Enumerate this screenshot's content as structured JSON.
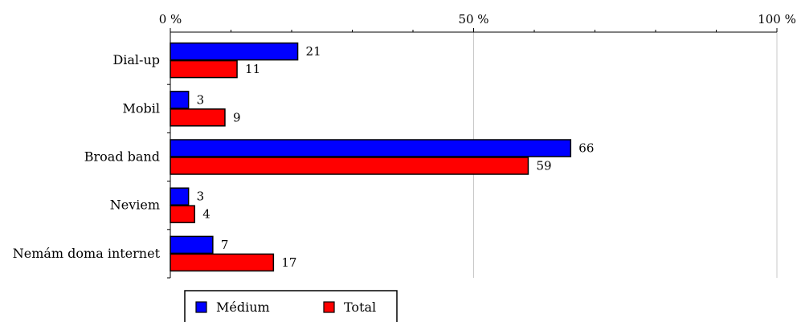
{
  "chart_data": {
    "type": "bar",
    "orientation": "horizontal",
    "categories": [
      "Dial-up",
      "Mobil",
      "Broad band",
      "Neviem",
      "Nemám doma internet"
    ],
    "series": [
      {
        "name": "Médium",
        "values": [
          21,
          3,
          66,
          3,
          7
        ],
        "color": "#0000ff"
      },
      {
        "name": "Total",
        "values": [
          11,
          9,
          59,
          4,
          17
        ],
        "color": "#ff0000"
      }
    ],
    "xlim": [
      0,
      100
    ],
    "x_ticks": [
      "0 %",
      "50 %",
      "100 %"
    ],
    "x_tick_values": [
      0,
      50,
      100
    ],
    "grid": true,
    "legend": "bottom",
    "title": "",
    "xlabel": "",
    "ylabel": ""
  }
}
